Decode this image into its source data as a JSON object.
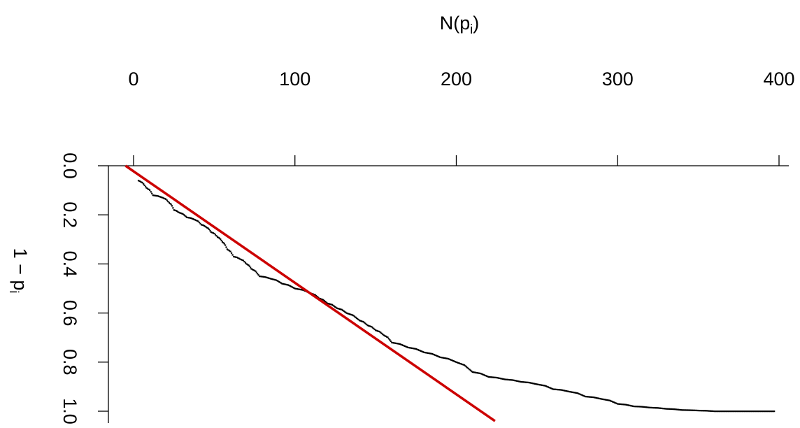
{
  "chart_data": {
    "type": "scatter",
    "title": "",
    "xlabel": {
      "base": "N(p",
      "sub": "i",
      "close": ")"
    },
    "ylabel": {
      "base": "1 − p",
      "sub": "i"
    },
    "x_axis_position": "top",
    "y_axis_reversed": true,
    "xlim": [
      -5,
      405
    ],
    "ylim": [
      0,
      1.04
    ],
    "x_ticks": [
      0,
      100,
      200,
      300,
      400
    ],
    "x_tick_labels": [
      "0",
      "100",
      "200",
      "300",
      "400"
    ],
    "y_ticks": [
      0,
      0.2,
      0.4,
      0.6,
      0.8,
      1.0
    ],
    "y_tick_labels": [
      "0.0",
      "0.2",
      "0.4",
      "0.6",
      "0.8",
      "1.0"
    ],
    "grid": false,
    "series": [
      {
        "type": "points",
        "color": "#000000",
        "anchors": [
          [
            3,
            0.06
          ],
          [
            8,
            0.09
          ],
          [
            12,
            0.12
          ],
          [
            18,
            0.13
          ],
          [
            22,
            0.15
          ],
          [
            25,
            0.18
          ],
          [
            28,
            0.19
          ],
          [
            33,
            0.21
          ],
          [
            38,
            0.22
          ],
          [
            42,
            0.24
          ],
          [
            45,
            0.25
          ],
          [
            48,
            0.27
          ],
          [
            52,
            0.29
          ],
          [
            55,
            0.31
          ],
          [
            58,
            0.34
          ],
          [
            62,
            0.37
          ],
          [
            66,
            0.38
          ],
          [
            70,
            0.4
          ],
          [
            73,
            0.42
          ],
          [
            78,
            0.45
          ],
          [
            85,
            0.46
          ],
          [
            92,
            0.48
          ],
          [
            100,
            0.5
          ],
          [
            110,
            0.52
          ],
          [
            115,
            0.54
          ],
          [
            120,
            0.56
          ],
          [
            126,
            0.58
          ],
          [
            132,
            0.6
          ],
          [
            140,
            0.63
          ],
          [
            145,
            0.65
          ],
          [
            150,
            0.67
          ],
          [
            155,
            0.69
          ],
          [
            160,
            0.72
          ],
          [
            170,
            0.74
          ],
          [
            180,
            0.76
          ],
          [
            190,
            0.78
          ],
          [
            200,
            0.8
          ],
          [
            210,
            0.84
          ],
          [
            220,
            0.86
          ],
          [
            230,
            0.87
          ],
          [
            240,
            0.88
          ],
          [
            250,
            0.89
          ],
          [
            260,
            0.91
          ],
          [
            270,
            0.92
          ],
          [
            280,
            0.94
          ],
          [
            290,
            0.95
          ],
          [
            300,
            0.97
          ],
          [
            310,
            0.98
          ],
          [
            320,
            0.985
          ],
          [
            330,
            0.99
          ],
          [
            340,
            0.995
          ],
          [
            350,
            0.997
          ],
          [
            360,
            1.0
          ],
          [
            380,
            1.0
          ],
          [
            397,
            1.0
          ]
        ]
      },
      {
        "type": "line",
        "color": "#cc0000",
        "points": [
          [
            -5,
            0.0
          ],
          [
            224,
            1.04
          ]
        ]
      }
    ]
  }
}
